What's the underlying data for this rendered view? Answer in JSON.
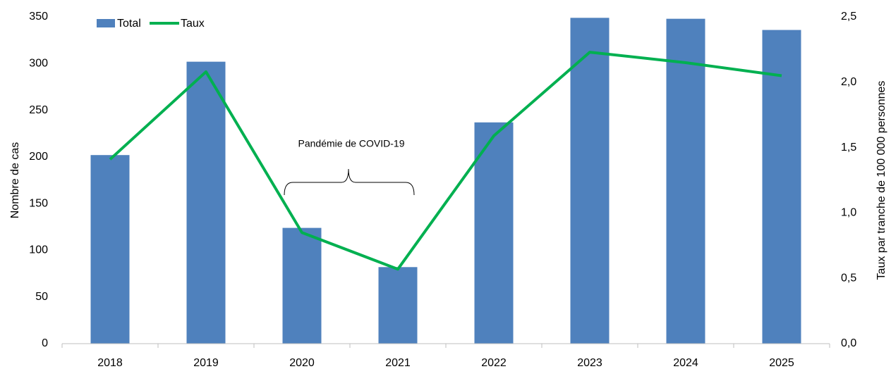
{
  "chart_data": {
    "type": "bar_line",
    "categories": [
      "2018",
      "2019",
      "2020",
      "2021",
      "2022",
      "2023",
      "2024",
      "2025"
    ],
    "series": [
      {
        "name": "Total",
        "color": "#4f81bd",
        "type": "bar",
        "values": [
          202,
          302,
          124,
          82,
          237,
          349,
          348,
          336
        ]
      },
      {
        "name": "Taux",
        "color": "#00b050",
        "type": "line",
        "axis": "y2",
        "values": [
          1.41,
          2.08,
          0.85,
          0.57,
          1.59,
          2.23,
          2.15,
          2.05
        ]
      }
    ],
    "y_label": "Nombre de cas",
    "y2_label": "Taux par tranche de 100 000 personnes",
    "ylim": [
      0,
      350
    ],
    "yticks": [
      0,
      50,
      100,
      150,
      200,
      250,
      300,
      350
    ],
    "y2lim": [
      0,
      2.5
    ],
    "y2ticks": [
      {
        "value": 0,
        "label": "0,0"
      },
      {
        "value": 0.5,
        "label": "0,5"
      },
      {
        "value": 1,
        "label": "1,0"
      },
      {
        "value": 1.5,
        "label": "1,5"
      },
      {
        "value": 2,
        "label": "2,0"
      },
      {
        "value": 2.5,
        "label": "2,5"
      }
    ],
    "annotation": "Pandémie de COVID-19",
    "legend": "top-left"
  }
}
